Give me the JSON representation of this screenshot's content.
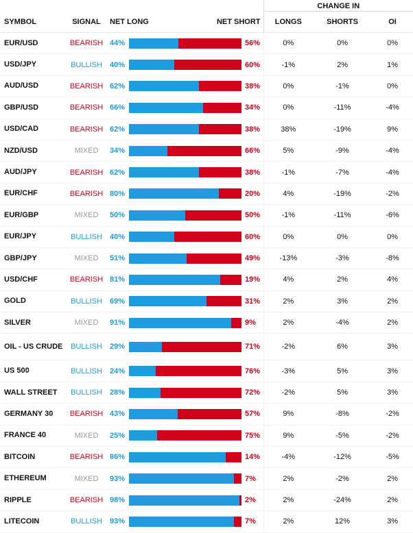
{
  "headers": {
    "change_in": "CHANGE IN",
    "symbol": "SYMBOL",
    "signal": "SIGNAL",
    "net_long": "NET LONG",
    "net_short": "NET SHORT",
    "longs": "LONGS",
    "shorts": "SHORTS",
    "oi": "OI"
  },
  "colors": {
    "long": "#1f9be0",
    "short": "#d0021b",
    "mixed": "#999999"
  },
  "rows": [
    {
      "symbol": "EUR/USD",
      "signal": "BEARISH",
      "net_long": "44%",
      "net_short": "56%",
      "long_value": 44,
      "longs": "0%",
      "shorts": "0%",
      "oi": "0%"
    },
    {
      "symbol": "USD/JPY",
      "signal": "BULLISH",
      "net_long": "40%",
      "net_short": "60%",
      "long_value": 40,
      "longs": "-1%",
      "shorts": "2%",
      "oi": "1%"
    },
    {
      "symbol": "AUD/USD",
      "signal": "BEARISH",
      "net_long": "62%",
      "net_short": "38%",
      "long_value": 62,
      "longs": "0%",
      "shorts": "-1%",
      "oi": "0%"
    },
    {
      "symbol": "GBP/USD",
      "signal": "BEARISH",
      "net_long": "66%",
      "net_short": "34%",
      "long_value": 66,
      "longs": "0%",
      "shorts": "-11%",
      "oi": "-4%"
    },
    {
      "symbol": "USD/CAD",
      "signal": "BEARISH",
      "net_long": "62%",
      "net_short": "38%",
      "long_value": 62,
      "longs": "38%",
      "shorts": "-19%",
      "oi": "9%"
    },
    {
      "symbol": "NZD/USD",
      "signal": "MIXED",
      "net_long": "34%",
      "net_short": "66%",
      "long_value": 34,
      "longs": "5%",
      "shorts": "-9%",
      "oi": "-4%"
    },
    {
      "symbol": "AUD/JPY",
      "signal": "BEARISH",
      "net_long": "62%",
      "net_short": "38%",
      "long_value": 62,
      "longs": "-1%",
      "shorts": "-7%",
      "oi": "-4%"
    },
    {
      "symbol": "EUR/CHF",
      "signal": "BEARISH",
      "net_long": "80%",
      "net_short": "20%",
      "long_value": 80,
      "longs": "4%",
      "shorts": "-19%",
      "oi": "-2%"
    },
    {
      "symbol": "EUR/GBP",
      "signal": "MIXED",
      "net_long": "50%",
      "net_short": "50%",
      "long_value": 50,
      "longs": "-1%",
      "shorts": "-11%",
      "oi": "-6%"
    },
    {
      "symbol": "EUR/JPY",
      "signal": "BULLISH",
      "net_long": "40%",
      "net_short": "60%",
      "long_value": 40,
      "longs": "0%",
      "shorts": "0%",
      "oi": "0%"
    },
    {
      "symbol": "GBP/JPY",
      "signal": "MIXED",
      "net_long": "51%",
      "net_short": "49%",
      "long_value": 51,
      "longs": "-13%",
      "shorts": "-3%",
      "oi": "-8%"
    },
    {
      "symbol": "USD/CHF",
      "signal": "BEARISH",
      "net_long": "81%",
      "net_short": "19%",
      "long_value": 81,
      "longs": "4%",
      "shorts": "2%",
      "oi": "4%"
    },
    {
      "symbol": "GOLD",
      "signal": "BULLISH",
      "net_long": "69%",
      "net_short": "31%",
      "long_value": 69,
      "longs": "2%",
      "shorts": "3%",
      "oi": "2%"
    },
    {
      "symbol": "SILVER",
      "signal": "MIXED",
      "net_long": "91%",
      "net_short": "9%",
      "long_value": 91,
      "longs": "2%",
      "shorts": "-4%",
      "oi": "2%"
    },
    {
      "symbol": "OIL - US CRUDE",
      "signal": "BULLISH",
      "net_long": "29%",
      "net_short": "71%",
      "long_value": 29,
      "longs": "-2%",
      "shorts": "6%",
      "oi": "3%"
    },
    {
      "symbol": "US 500",
      "signal": "BULLISH",
      "net_long": "24%",
      "net_short": "76%",
      "long_value": 24,
      "longs": "-3%",
      "shorts": "5%",
      "oi": "3%"
    },
    {
      "symbol": "WALL STREET",
      "signal": "BULLISH",
      "net_long": "28%",
      "net_short": "72%",
      "long_value": 28,
      "longs": "-2%",
      "shorts": "5%",
      "oi": "3%"
    },
    {
      "symbol": "GERMANY 30",
      "signal": "BEARISH",
      "net_long": "43%",
      "net_short": "57%",
      "long_value": 43,
      "longs": "9%",
      "shorts": "-8%",
      "oi": "-2%"
    },
    {
      "symbol": "FRANCE 40",
      "signal": "MIXED",
      "net_long": "25%",
      "net_short": "75%",
      "long_value": 25,
      "longs": "9%",
      "shorts": "-5%",
      "oi": "-2%"
    },
    {
      "symbol": "BITCOIN",
      "signal": "BEARISH",
      "net_long": "86%",
      "net_short": "14%",
      "long_value": 86,
      "longs": "-4%",
      "shorts": "-12%",
      "oi": "-5%"
    },
    {
      "symbol": "ETHEREUM",
      "signal": "MIXED",
      "net_long": "93%",
      "net_short": "7%",
      "long_value": 93,
      "longs": "2%",
      "shorts": "-2%",
      "oi": "2%"
    },
    {
      "symbol": "RIPPLE",
      "signal": "BEARISH",
      "net_long": "98%",
      "net_short": "2%",
      "long_value": 98,
      "longs": "2%",
      "shorts": "-24%",
      "oi": "2%"
    },
    {
      "symbol": "LITECOIN",
      "signal": "BULLISH",
      "net_long": "93%",
      "net_short": "7%",
      "long_value": 93,
      "longs": "2%",
      "shorts": "12%",
      "oi": "3%"
    }
  ]
}
